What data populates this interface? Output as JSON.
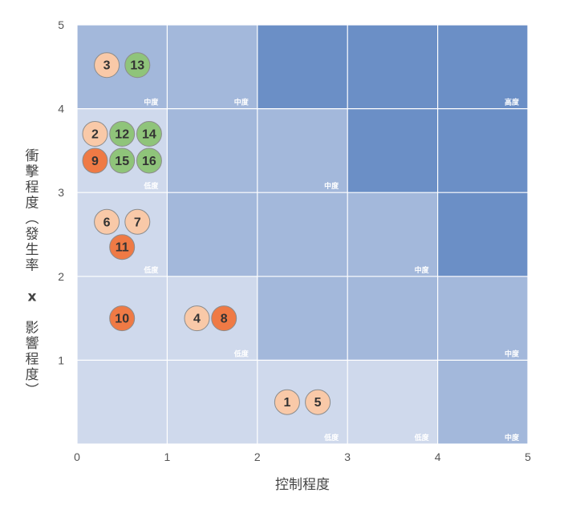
{
  "chart_data": {
    "type": "scatter",
    "xlabel": "控制程度",
    "ylabel": "衝擊程度（發生率 x 影響程度）",
    "xlim": [
      0,
      5
    ],
    "ylim": [
      0,
      5
    ],
    "xticks": [
      "0",
      "1",
      "2",
      "3",
      "4",
      "5"
    ],
    "yticks": [
      "1",
      "2",
      "3",
      "4",
      "5"
    ],
    "level_colors": {
      "低度": "#cfd9ec",
      "中度": "#a3b8db",
      "高度": "#6b8fc6"
    },
    "heatmap_cells": [
      {
        "col": 0,
        "row": 0,
        "level": "低度",
        "label": ""
      },
      {
        "col": 1,
        "row": 0,
        "level": "低度",
        "label": ""
      },
      {
        "col": 2,
        "row": 0,
        "level": "低度",
        "label": "低度"
      },
      {
        "col": 3,
        "row": 0,
        "level": "低度",
        "label": "低度"
      },
      {
        "col": 4,
        "row": 0,
        "level": "中度",
        "label": "中度"
      },
      {
        "col": 0,
        "row": 1,
        "level": "低度",
        "label": ""
      },
      {
        "col": 1,
        "row": 1,
        "level": "低度",
        "label": "低度"
      },
      {
        "col": 2,
        "row": 1,
        "level": "中度",
        "label": ""
      },
      {
        "col": 3,
        "row": 1,
        "level": "中度",
        "label": ""
      },
      {
        "col": 4,
        "row": 1,
        "level": "中度",
        "label": "中度"
      },
      {
        "col": 0,
        "row": 2,
        "level": "低度",
        "label": "低度"
      },
      {
        "col": 1,
        "row": 2,
        "level": "中度",
        "label": ""
      },
      {
        "col": 2,
        "row": 2,
        "level": "中度",
        "label": ""
      },
      {
        "col": 3,
        "row": 2,
        "level": "中度",
        "label": "中度"
      },
      {
        "col": 4,
        "row": 2,
        "level": "高度",
        "label": ""
      },
      {
        "col": 0,
        "row": 3,
        "level": "低度",
        "label": "低度"
      },
      {
        "col": 1,
        "row": 3,
        "level": "中度",
        "label": ""
      },
      {
        "col": 2,
        "row": 3,
        "level": "中度",
        "label": "中度"
      },
      {
        "col": 3,
        "row": 3,
        "level": "高度",
        "label": ""
      },
      {
        "col": 4,
        "row": 3,
        "level": "高度",
        "label": ""
      },
      {
        "col": 0,
        "row": 4,
        "level": "中度",
        "label": "中度"
      },
      {
        "col": 1,
        "row": 4,
        "level": "中度",
        "label": "中度"
      },
      {
        "col": 2,
        "row": 4,
        "level": "高度",
        "label": ""
      },
      {
        "col": 3,
        "row": 4,
        "level": "高度",
        "label": ""
      },
      {
        "col": 4,
        "row": 4,
        "level": "高度",
        "label": "高度"
      }
    ],
    "bubble_colors": {
      "peach": "#f9c9a8",
      "green": "#8fc47a",
      "orange": "#ef7a45"
    },
    "points": [
      {
        "label": "3",
        "x": 0.33,
        "y": 4.52,
        "color": "peach"
      },
      {
        "label": "13",
        "x": 0.67,
        "y": 4.52,
        "color": "green"
      },
      {
        "label": "2",
        "x": 0.2,
        "y": 3.7,
        "color": "peach"
      },
      {
        "label": "12",
        "x": 0.5,
        "y": 3.7,
        "color": "green"
      },
      {
        "label": "14",
        "x": 0.8,
        "y": 3.7,
        "color": "green"
      },
      {
        "label": "9",
        "x": 0.2,
        "y": 3.38,
        "color": "orange"
      },
      {
        "label": "15",
        "x": 0.5,
        "y": 3.38,
        "color": "green"
      },
      {
        "label": "16",
        "x": 0.8,
        "y": 3.38,
        "color": "green"
      },
      {
        "label": "6",
        "x": 0.33,
        "y": 2.65,
        "color": "peach"
      },
      {
        "label": "7",
        "x": 0.67,
        "y": 2.65,
        "color": "peach"
      },
      {
        "label": "11",
        "x": 0.5,
        "y": 2.35,
        "color": "orange"
      },
      {
        "label": "10",
        "x": 0.5,
        "y": 1.5,
        "color": "orange"
      },
      {
        "label": "4",
        "x": 1.33,
        "y": 1.5,
        "color": "peach"
      },
      {
        "label": "8",
        "x": 1.63,
        "y": 1.5,
        "color": "orange"
      },
      {
        "label": "1",
        "x": 2.33,
        "y": 0.5,
        "color": "peach"
      },
      {
        "label": "5",
        "x": 2.67,
        "y": 0.5,
        "color": "peach"
      }
    ]
  }
}
